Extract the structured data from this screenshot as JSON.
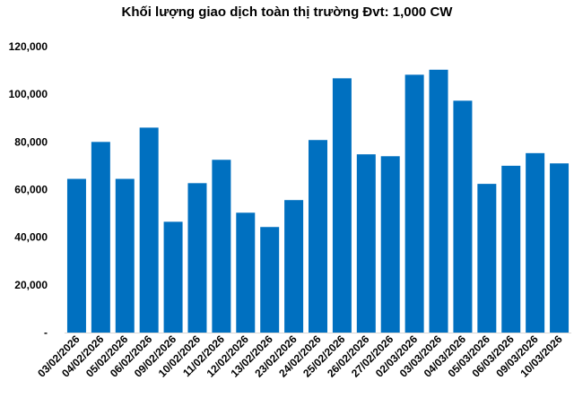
{
  "chart_data": {
    "type": "bar",
    "title": "Khối lượng giao dịch toàn thị trường Đvt: 1,000 CW",
    "xlabel": "",
    "ylabel": "",
    "categories": [
      "03/02/2026",
      "04/02/2026",
      "05/02/2026",
      "06/02/2026",
      "09/02/2026",
      "10/02/2026",
      "11/02/2026",
      "12/02/2026",
      "13/02/2026",
      "23/02/2026",
      "24/02/2026",
      "25/02/2026",
      "26/02/2026",
      "27/02/2026",
      "02/03/2026",
      "03/03/2026",
      "04/03/2026",
      "05/03/2026",
      "06/03/2026",
      "09/03/2026",
      "10/03/2026"
    ],
    "values": [
      64500,
      80000,
      64500,
      86000,
      46500,
      62700,
      72500,
      50300,
      44300,
      55600,
      80800,
      106700,
      74800,
      74000,
      108200,
      110300,
      97300,
      62400,
      70000,
      75300,
      71000
    ],
    "ylim": [
      0,
      120000
    ],
    "yticks": [
      "-",
      "20,000",
      "40,000",
      "60,000",
      "80,000",
      "100,000",
      "120,000"
    ],
    "grid": false,
    "legend": "none",
    "bar_color": "#0070C0"
  }
}
